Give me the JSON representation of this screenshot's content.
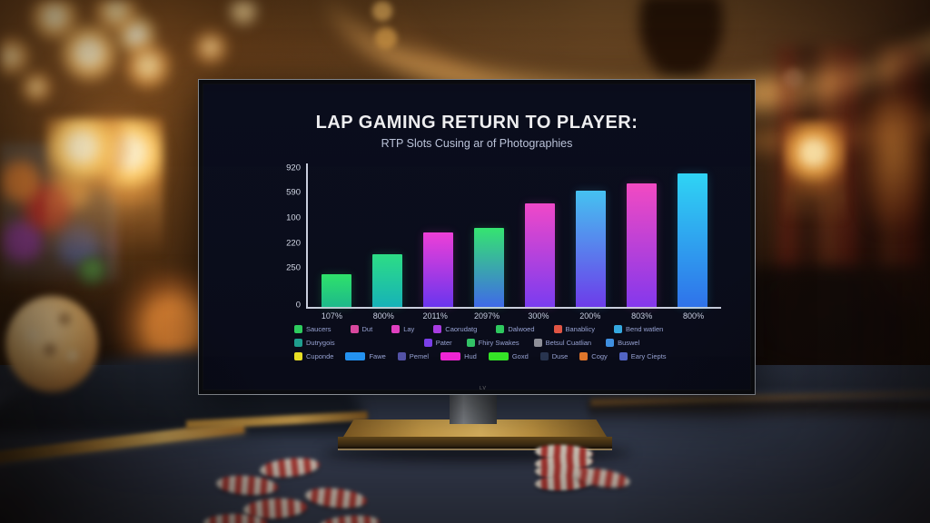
{
  "monitor": {
    "logo": "LV"
  },
  "chart_data": {
    "type": "bar",
    "title": "LAP GAMING RETURN TO PLAYER:",
    "subtitle": "RTP Slots Cusing ar of Photographies",
    "categories": [
      "107%",
      "800%",
      "2011%",
      "2097%",
      "300%",
      "200%",
      "803%",
      "800%"
    ],
    "values": [
      23,
      37,
      52,
      55,
      72,
      81,
      86,
      93
    ],
    "ylim": [
      0,
      100
    ],
    "y_ticks": [
      "920",
      "590",
      "100",
      "220",
      "250",
      "0"
    ],
    "grid": false,
    "legend_position": "bottom",
    "bar_gradients": [
      [
        "#2fe26a",
        "#1db98b"
      ],
      [
        "#2ddd85",
        "#16b2b8"
      ],
      [
        "#ee3fd7",
        "#6a35ee"
      ],
      [
        "#35e470",
        "#3f6ae8"
      ],
      [
        "#f048c8",
        "#7a3cf0"
      ],
      [
        "#45c2f0",
        "#6d3cea"
      ],
      [
        "#f24ac2",
        "#8438ec"
      ],
      [
        "#2fd4f4",
        "#2f72ea"
      ]
    ],
    "legend_rows": [
      [
        {
          "label": "Saucers",
          "color": "#2ecc5e"
        },
        {
          "label": "Dut",
          "color": "#d8489e"
        },
        {
          "label": "Lay",
          "color": "#e040c0"
        },
        {
          "label": "Caorudatg",
          "color": "#a83ce0"
        },
        {
          "label": "Dalwoed",
          "color": "#2ec85e"
        },
        {
          "label": "Banablicy",
          "color": "#e05544"
        },
        {
          "label": "Bend watlen",
          "color": "#35a8e0"
        }
      ],
      [
        {
          "label": "Dutrygois",
          "color": "#1f9e8e"
        },
        {
          "label": "Pater",
          "color": "#7a3fe8"
        },
        {
          "label": "Fhiry Swakes",
          "color": "#32c266"
        },
        {
          "label": "Betsul Cuatlian",
          "color": "#8f9099"
        },
        {
          "label": "Buswel",
          "color": "#3f8fe0"
        }
      ],
      [
        {
          "label": "Cuponde",
          "color": "#e8df25"
        },
        {
          "label": "Fawe",
          "color": "#2492f0",
          "wide": true
        },
        {
          "label": "Pemel",
          "color": "#5352a6"
        },
        {
          "label": "Hud",
          "color": "#ef25d4",
          "wide": true
        },
        {
          "label": "Goxd",
          "color": "#35e427",
          "wide": true
        },
        {
          "label": "Duse",
          "color": "#28344f"
        },
        {
          "label": "Cogy",
          "color": "#e0762b"
        },
        {
          "label": "Eary Ciepts",
          "color": "#5264c4"
        }
      ]
    ]
  }
}
